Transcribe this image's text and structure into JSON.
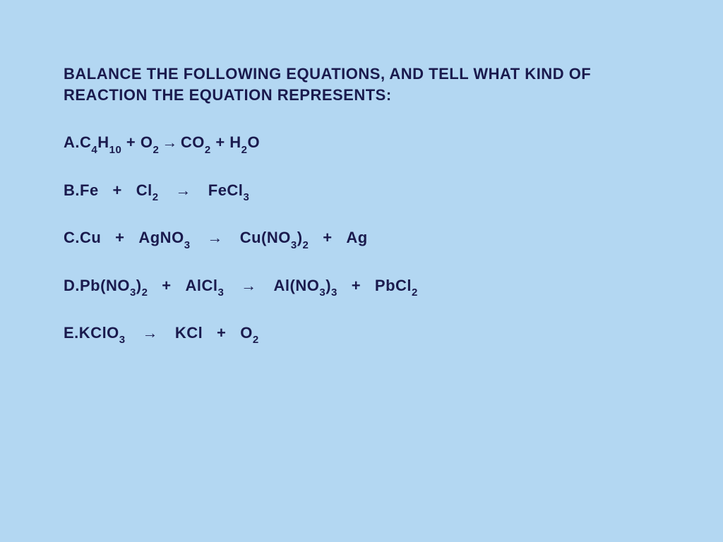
{
  "background_color": "#b3d7f2",
  "text_color": "#1a1a4d",
  "font_family": "Comic Sans MS",
  "title_fontsize": 22,
  "equation_fontsize": 22,
  "subscript_fontsize": 15,
  "title": "BALANCE THE FOLLOWING EQUATIONS, AND TELL WHAT KIND OF REACTION THE EQUATION REPRESENTS:",
  "equations": [
    {
      "label": "A.",
      "reactants": [
        {
          "tokens": [
            {
              "t": "C"
            },
            {
              "t": "4",
              "sub": true
            },
            {
              "t": "H"
            },
            {
              "t": "10",
              "sub": true
            }
          ]
        },
        {
          "tokens": [
            {
              "t": "O"
            },
            {
              "t": "2",
              "sub": true
            }
          ]
        }
      ],
      "arrow": "→",
      "products": [
        {
          "tokens": [
            {
              "t": "CO"
            },
            {
              "t": "2",
              "sub": true
            }
          ]
        },
        {
          "tokens": [
            {
              "t": "H"
            },
            {
              "t": "2",
              "sub": true
            },
            {
              "t": "O"
            }
          ]
        }
      ],
      "plus": "+",
      "spacing": "tight"
    },
    {
      "label": "B.",
      "reactants": [
        {
          "tokens": [
            {
              "t": "Fe"
            }
          ]
        },
        {
          "tokens": [
            {
              "t": "Cl"
            },
            {
              "t": "2",
              "sub": true
            }
          ]
        }
      ],
      "arrow": "→",
      "products": [
        {
          "tokens": [
            {
              "t": "FeCl"
            },
            {
              "t": "3",
              "sub": true
            }
          ]
        }
      ],
      "plus": "+",
      "spacing": "loose"
    },
    {
      "label": "C.",
      "reactants": [
        {
          "tokens": [
            {
              "t": "Cu"
            }
          ]
        },
        {
          "tokens": [
            {
              "t": "AgNO"
            },
            {
              "t": "3",
              "sub": true
            }
          ]
        }
      ],
      "arrow": "→",
      "products": [
        {
          "tokens": [
            {
              "t": "Cu(NO"
            },
            {
              "t": "3",
              "sub": true
            },
            {
              "t": ")"
            },
            {
              "t": "2",
              "sub": true
            }
          ]
        },
        {
          "tokens": [
            {
              "t": "Ag"
            }
          ]
        }
      ],
      "plus": "+",
      "spacing": "loose"
    },
    {
      "label": "D.",
      "reactants": [
        {
          "tokens": [
            {
              "t": "Pb(NO"
            },
            {
              "t": "3",
              "sub": true
            },
            {
              "t": ")"
            },
            {
              "t": "2",
              "sub": true
            }
          ]
        },
        {
          "tokens": [
            {
              "t": "AlCl"
            },
            {
              "t": "3",
              "sub": true
            }
          ]
        }
      ],
      "arrow": "→",
      "products": [
        {
          "tokens": [
            {
              "t": "Al(NO"
            },
            {
              "t": "3",
              "sub": true
            },
            {
              "t": ")"
            },
            {
              "t": "3",
              "sub": true
            }
          ]
        },
        {
          "tokens": [
            {
              "t": "PbCl"
            },
            {
              "t": "2",
              "sub": true
            }
          ]
        }
      ],
      "plus": "+",
      "spacing": "loose"
    },
    {
      "label": "E.",
      "reactants": [
        {
          "tokens": [
            {
              "t": "KClO"
            },
            {
              "t": "3",
              "sub": true
            }
          ]
        }
      ],
      "arrow": "→",
      "products": [
        {
          "tokens": [
            {
              "t": "KCl"
            }
          ]
        },
        {
          "tokens": [
            {
              "t": "O"
            },
            {
              "t": "2",
              "sub": true
            }
          ]
        }
      ],
      "plus": "+",
      "spacing": "loose"
    }
  ]
}
